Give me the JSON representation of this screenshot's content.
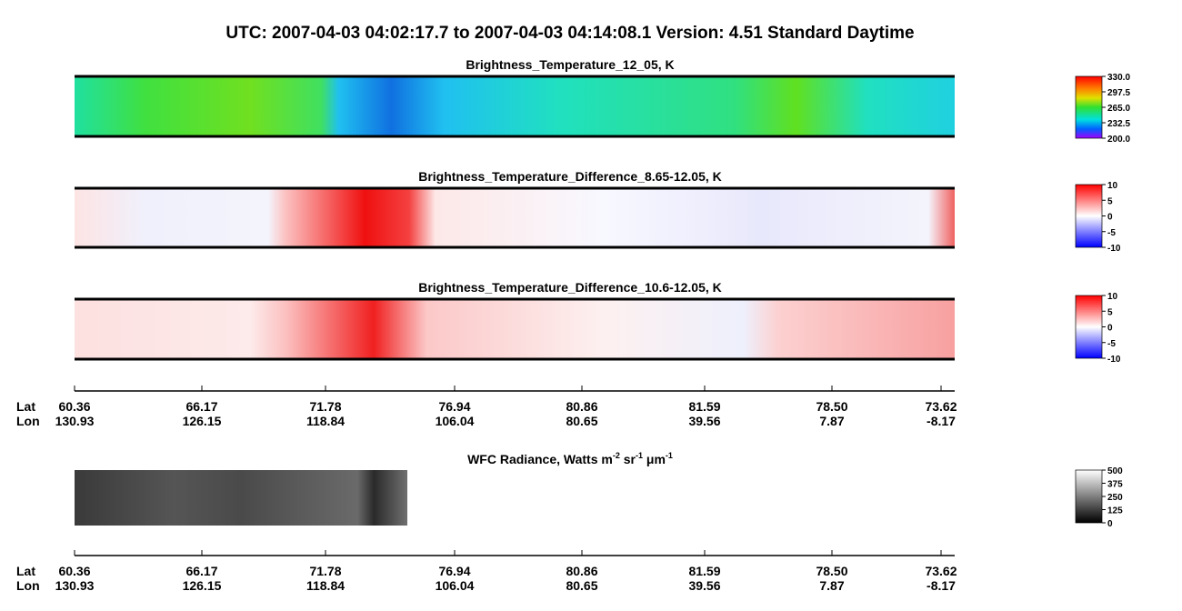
{
  "header": {
    "title": "UTC:  2007-04-03   04:02:17.7  to  2007-04-03   04:14:08.1    Version: 4.51  Standard Daytime"
  },
  "panels": [
    {
      "title": "Brightness_Temperature_12_05, K",
      "colorbar": [
        "330.0",
        "297.5",
        "265.0",
        "232.5",
        "200.0"
      ]
    },
    {
      "title": "Brightness_Temperature_Difference_8.65-12.05, K",
      "colorbar": [
        "10",
        "5",
        "0",
        "-5",
        "-10"
      ]
    },
    {
      "title": "Brightness_Temperature_Difference_10.6-12.05, K",
      "colorbar": [
        "10",
        "5",
        "0",
        "-5",
        "-10"
      ]
    }
  ],
  "axis": {
    "lat_label": "Lat",
    "lon_label": "Lon",
    "lat": [
      "60.36",
      "66.17",
      "71.78",
      "76.94",
      "80.86",
      "81.59",
      "78.50",
      "73.62"
    ],
    "lon": [
      "130.93",
      "126.15",
      "118.84",
      "106.04",
      "80.65",
      "39.56",
      "7.87",
      "-8.17"
    ]
  },
  "wfc": {
    "title_parts": [
      "WFC Radiance, Watts m",
      "-2",
      " sr",
      "-1",
      " μm",
      "-1"
    ],
    "colorbar": [
      "500",
      "375",
      "250",
      "125",
      "0"
    ]
  }
}
